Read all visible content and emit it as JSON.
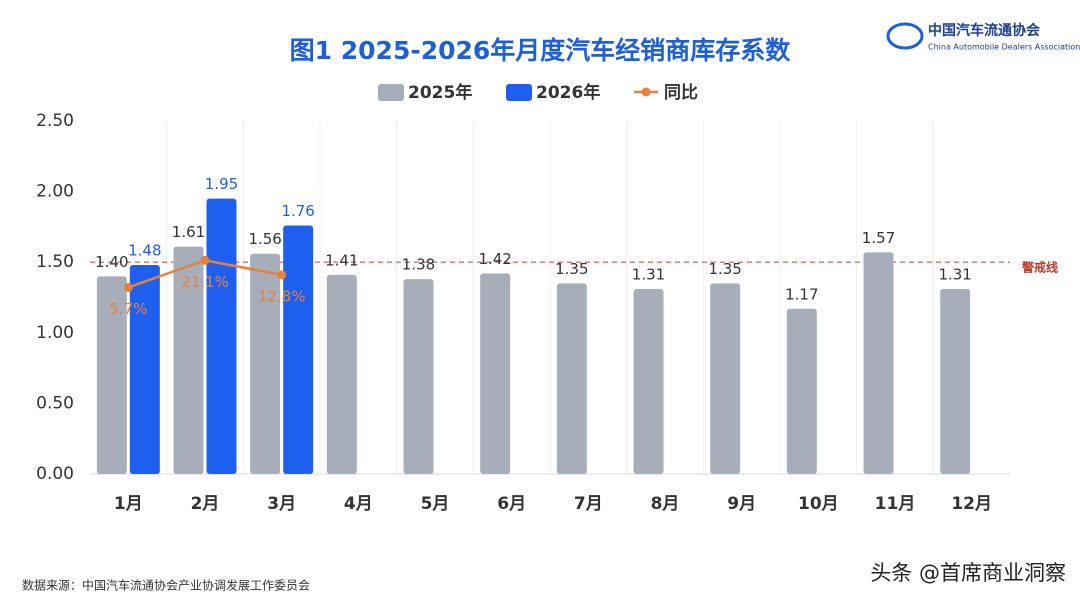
{
  "chart_data": {
    "type": "bar",
    "title": "图1  2025-2026年月度汽车经销商库存系数",
    "logo": {
      "name": "中国汽车流通协会",
      "english": "China Automobile Dealers Association"
    },
    "categories": [
      "1月",
      "2月",
      "3月",
      "4月",
      "5月",
      "6月",
      "7月",
      "8月",
      "9月",
      "10月",
      "11月",
      "12月"
    ],
    "series": [
      {
        "name": "2025年",
        "color": "#a7aeb9",
        "type": "bar",
        "values": [
          1.4,
          1.61,
          1.56,
          1.41,
          1.38,
          1.42,
          1.35,
          1.31,
          1.35,
          1.17,
          1.57,
          1.31
        ],
        "value_labels": [
          "1.40",
          "1.61",
          "1.56",
          "1.41",
          "1.38",
          "1.42",
          "1.35",
          "1.31",
          "1.35",
          "1.17",
          "1.57",
          "1.31"
        ]
      },
      {
        "name": "2026年",
        "color": "#1f5ff0",
        "type": "bar",
        "values": [
          1.48,
          1.95,
          1.76,
          null,
          null,
          null,
          null,
          null,
          null,
          null,
          null,
          null
        ],
        "value_labels": [
          "1.48",
          "1.95",
          "1.76",
          null,
          null,
          null,
          null,
          null,
          null,
          null,
          null,
          null
        ]
      },
      {
        "name": "同比",
        "color": "#e8813c",
        "type": "line",
        "axis": "y2",
        "values": [
          5.7,
          21.1,
          12.8,
          null,
          null,
          null,
          null,
          null,
          null,
          null,
          null,
          null
        ],
        "value_labels": [
          "5.7%",
          "21.1%",
          "12.8%",
          null,
          null,
          null,
          null,
          null,
          null,
          null,
          null,
          null
        ]
      }
    ],
    "ylim": [
      0,
      2.5
    ],
    "yticks": [
      {
        "value": 0,
        "label": "0.00"
      },
      {
        "value": 0.5,
        "label": "0.50"
      },
      {
        "value": 1,
        "label": "1.00"
      },
      {
        "value": 1.5,
        "label": "1.50"
      },
      {
        "value": 2,
        "label": "2.00"
      },
      {
        "value": 2.5,
        "label": "2.50"
      }
    ],
    "y2lim": [
      -100,
      100
    ],
    "reference_line": {
      "value": 1.5,
      "label": "警戒线",
      "color": "#d9534f"
    },
    "legend": "top",
    "source": "数据来源：中国汽车流通协会产业协调发展工作委员会",
    "watermark": "头条 @首席商业洞察"
  }
}
